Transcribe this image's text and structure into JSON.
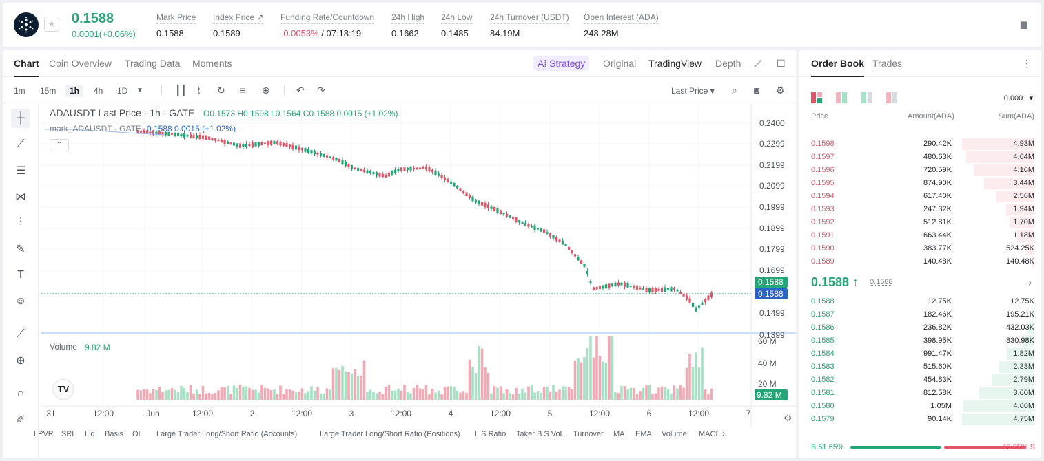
{
  "ticker": {
    "last_price": "0.1588",
    "change": "0.0001(+0.06%)",
    "stats": [
      {
        "label": "Mark Price",
        "value": "0.1588"
      },
      {
        "label": "Index Price ↗",
        "value": "0.1589"
      },
      {
        "label": "Funding Rate/Countdown",
        "value_neg": "-0.0053%",
        "value": " / 07:18:19"
      },
      {
        "label": "24h High",
        "value": "0.1662"
      },
      {
        "label": "24h Low",
        "value": "0.1485"
      },
      {
        "label": "24h Turnover (USDT)",
        "value": "84.19M"
      },
      {
        "label": "Open Interest (ADA)",
        "value": "248.28M"
      }
    ]
  },
  "chart_tabs": [
    "Chart",
    "Coin Overview",
    "Trading Data",
    "Moments"
  ],
  "view_tabs": {
    "strategy": "A⁞ Strategy",
    "original": "Original",
    "tradingview": "TradingView",
    "depth": "Depth"
  },
  "timeframes": [
    "1m",
    "15m",
    "1h",
    "4h",
    "1D"
  ],
  "last_price_select": "Last Price",
  "legend": {
    "title": "ADAUSDT Last Price · 1h · GATE",
    "ohlc": "O0.1573  H0.1598  L0.1564  C0.1588  0.0015 (+1.02%)",
    "mark_line": "mark_ADAUSDT · GATE",
    "mark_vals": "0.1588  0.0015  (+1.02%)",
    "volume_label": "Volume",
    "volume_value": "9.82 M"
  },
  "price_axis": [
    "0.2400",
    "0.2299",
    "0.2199",
    "0.2099",
    "0.1999",
    "0.1899",
    "0.1799",
    "0.1699",
    "0.1588",
    "0.1588",
    "0.1499",
    "0.1399"
  ],
  "volume_axis": [
    "60 M",
    "40 M",
    "20 M",
    "9.82 M"
  ],
  "time_axis": [
    "31",
    "12:00",
    "Jun",
    "12:00",
    "2",
    "12:00",
    "3",
    "12:00",
    "4",
    "12:00",
    "5",
    "12:00",
    "6",
    "12:00",
    "7"
  ],
  "indicators": [
    "LPVR",
    "SRL",
    "Liq",
    "Basis",
    "OI",
    "Large Trader Long/Short Ratio (Accounts)",
    "Large Trader Long/Short Ratio (Positions)",
    "L.S Ratio",
    "Taker B.S Vol.",
    "Turnover",
    "MA",
    "EMA",
    "Volume",
    "MACD"
  ],
  "orderbook": {
    "tabs": [
      "Order Book",
      "Trades"
    ],
    "precision": "0.0001",
    "headers": [
      "Price",
      "Amount(ADA)",
      "Sum(ADA)"
    ],
    "asks": [
      {
        "price": "0.1598",
        "amount": "290.42K",
        "sum": "4.93M",
        "depth": 1.0
      },
      {
        "price": "0.1597",
        "amount": "480.63K",
        "sum": "4.64M",
        "depth": 0.94
      },
      {
        "price": "0.1596",
        "amount": "720.59K",
        "sum": "4.16M",
        "depth": 0.84
      },
      {
        "price": "0.1595",
        "amount": "874.90K",
        "sum": "3.44M",
        "depth": 0.7
      },
      {
        "price": "0.1594",
        "amount": "617.40K",
        "sum": "2.56M",
        "depth": 0.52
      },
      {
        "price": "0.1593",
        "amount": "247.32K",
        "sum": "1.94M",
        "depth": 0.39
      },
      {
        "price": "0.1592",
        "amount": "512.81K",
        "sum": "1.70M",
        "depth": 0.34
      },
      {
        "price": "0.1591",
        "amount": "663.44K",
        "sum": "1.18M",
        "depth": 0.24
      },
      {
        "price": "0.1590",
        "amount": "383.77K",
        "sum": "524.25K",
        "depth": 0.11
      },
      {
        "price": "0.1589",
        "amount": "140.48K",
        "sum": "140.48K",
        "depth": 0.03
      }
    ],
    "mid": {
      "price": "0.1588 ↑",
      "mark": "0.1588"
    },
    "bids": [
      {
        "price": "0.1588",
        "amount": "12.75K",
        "sum": "12.75K",
        "depth": 0.01
      },
      {
        "price": "0.1587",
        "amount": "182.46K",
        "sum": "195.21K",
        "depth": 0.04
      },
      {
        "price": "0.1586",
        "amount": "236.82K",
        "sum": "432.03K",
        "depth": 0.09
      },
      {
        "price": "0.1585",
        "amount": "398.95K",
        "sum": "830.98K",
        "depth": 0.17
      },
      {
        "price": "0.1584",
        "amount": "991.47K",
        "sum": "1.82M",
        "depth": 0.38
      },
      {
        "price": "0.1583",
        "amount": "515.60K",
        "sum": "2.33M",
        "depth": 0.49
      },
      {
        "price": "0.1582",
        "amount": "454.83K",
        "sum": "2.79M",
        "depth": 0.59
      },
      {
        "price": "0.1581",
        "amount": "812.58K",
        "sum": "3.60M",
        "depth": 0.76
      },
      {
        "price": "0.1580",
        "amount": "1.05M",
        "sum": "4.66M",
        "depth": 0.98
      },
      {
        "price": "0.1579",
        "amount": "90.14K",
        "sum": "4.75M",
        "depth": 1.0
      }
    ],
    "buy_ratio": "B 51.65%",
    "sell_ratio": "48.35% S",
    "buy_fraction": 0.5165
  },
  "colors": {
    "up": "#26a676",
    "down": "#e05568",
    "accent": "#7b4cf0"
  }
}
